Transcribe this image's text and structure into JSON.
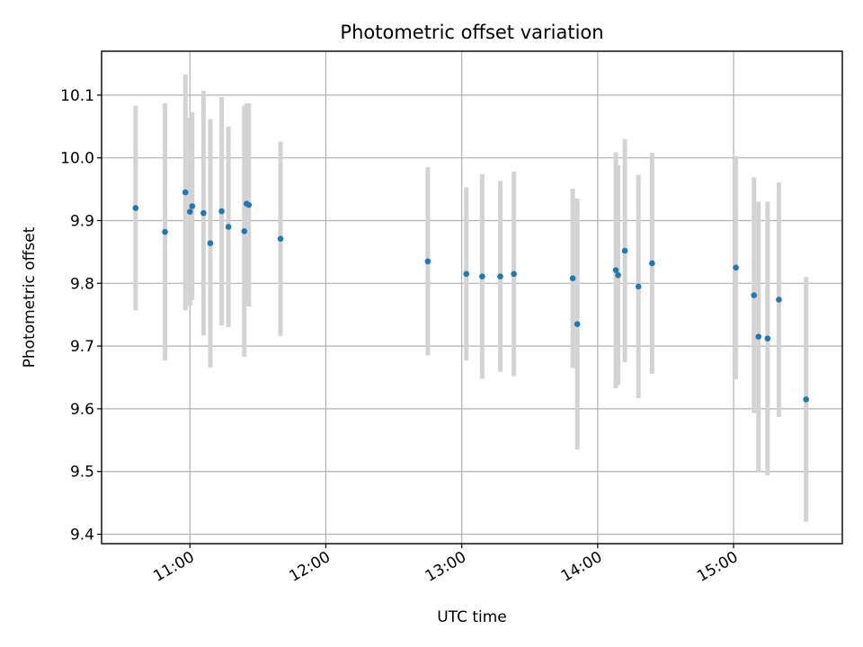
{
  "chart_data": {
    "type": "scatter",
    "title": "Photometric offset variation",
    "xlabel": "UTC time",
    "ylabel": "Photometric offset",
    "grid": true,
    "xlim": [
      "10:21",
      "15:48"
    ],
    "ylim": [
      9.385,
      10.17
    ],
    "x_ticks": [
      "11:00",
      "12:00",
      "13:00",
      "14:00",
      "15:00"
    ],
    "y_ticks": [
      9.4,
      9.5,
      9.6,
      9.7,
      9.8,
      9.9,
      10.0,
      10.1
    ],
    "colors": {
      "points": "#1f77b4",
      "errorbars": "#d3d3d3"
    },
    "series": [
      {
        "points": [
          {
            "x": "10:36",
            "y": 9.92,
            "err": 0.163
          },
          {
            "x": "10:49",
            "y": 9.882,
            "err": 0.205
          },
          {
            "x": "10:58",
            "y": 9.945,
            "err": 0.188
          },
          {
            "x": "11:00",
            "y": 9.914,
            "err": 0.15
          },
          {
            "x": "11:01",
            "y": 9.923,
            "err": 0.15
          },
          {
            "x": "11:06",
            "y": 9.912,
            "err": 0.195
          },
          {
            "x": "11:09",
            "y": 9.864,
            "err": 0.198
          },
          {
            "x": "11:14",
            "y": 9.915,
            "err": 0.182
          },
          {
            "x": "11:17",
            "y": 9.89,
            "err": 0.16
          },
          {
            "x": "11:24",
            "y": 9.883,
            "err": 0.2
          },
          {
            "x": "11:25",
            "y": 9.927,
            "err": 0.16
          },
          {
            "x": "11:26",
            "y": 9.925,
            "err": 0.162
          },
          {
            "x": "11:40",
            "y": 9.871,
            "err": 0.155
          },
          {
            "x": "12:45",
            "y": 9.835,
            "err": 0.15
          },
          {
            "x": "13:02",
            "y": 9.815,
            "err": 0.138
          },
          {
            "x": "13:09",
            "y": 9.811,
            "err": 0.163
          },
          {
            "x": "13:17",
            "y": 9.811,
            "err": 0.152
          },
          {
            "x": "13:23",
            "y": 9.815,
            "err": 0.163
          },
          {
            "x": "13:49",
            "y": 9.808,
            "err": 0.143
          },
          {
            "x": "13:51",
            "y": 9.735,
            "err": 0.2
          },
          {
            "x": "14:08",
            "y": 9.821,
            "err": 0.188
          },
          {
            "x": "14:09",
            "y": 9.813,
            "err": 0.175
          },
          {
            "x": "14:12",
            "y": 9.852,
            "err": 0.178
          },
          {
            "x": "14:18",
            "y": 9.795,
            "err": 0.178
          },
          {
            "x": "14:24",
            "y": 9.832,
            "err": 0.176
          },
          {
            "x": "15:01",
            "y": 9.825,
            "err": 0.178
          },
          {
            "x": "15:09",
            "y": 9.781,
            "err": 0.188
          },
          {
            "x": "15:11",
            "y": 9.715,
            "err": 0.215
          },
          {
            "x": "15:15",
            "y": 9.712,
            "err": 0.218
          },
          {
            "x": "15:20",
            "y": 9.774,
            "err": 0.187
          },
          {
            "x": "15:32",
            "y": 9.615,
            "err": 0.195
          }
        ]
      }
    ]
  }
}
